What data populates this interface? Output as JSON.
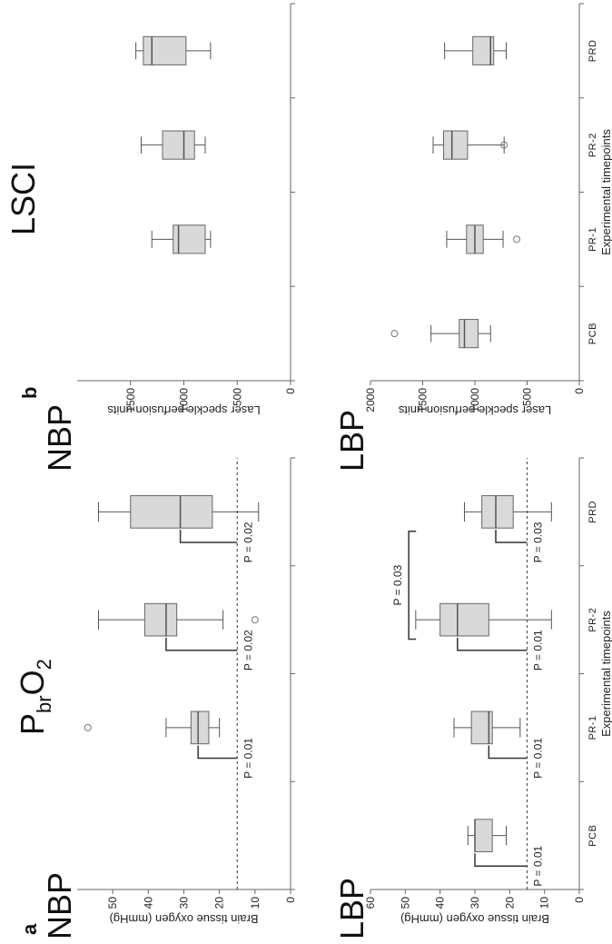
{
  "figure": {
    "panel_a_letter": "a",
    "panel_b_letter": "b",
    "panel_a_title": "P",
    "panel_a_title_sub": "br",
    "panel_a_title_mid": "O",
    "panel_a_title_sub2": "2",
    "panel_b_title": "LSCI",
    "row_top_label": "NBP",
    "row_bottom_label": "LBP",
    "row_top_label_b": "NBP",
    "row_bottom_label_b": "LBP"
  },
  "chart_data": [
    {
      "id": "a_nbp",
      "type": "box",
      "panel": "a",
      "row": "NBP",
      "title": "NBP",
      "ylabel": "Brain tissue oxygen (mmHg)",
      "xlabel": "",
      "ylim": [
        0,
        60
      ],
      "yticks": [
        "0",
        "10",
        "20",
        "30",
        "40",
        "50"
      ],
      "categories": [
        "PCB",
        "PR-1",
        "PR-2",
        "PRD"
      ],
      "show_category_labels": false,
      "reference_line": 15,
      "boxes": [
        {
          "category": "PCB",
          "present": false
        },
        {
          "category": "PR-1",
          "present": true,
          "min": 20,
          "q1": 23,
          "median": 26,
          "q3": 28,
          "max": 35,
          "outliers": [
            57
          ]
        },
        {
          "category": "PR-2",
          "present": true,
          "min": 19,
          "q1": 32,
          "median": 35,
          "q3": 41,
          "max": 54,
          "outliers": [
            10
          ]
        },
        {
          "category": "PRD",
          "present": true,
          "min": 9,
          "q1": 22,
          "median": 31,
          "q3": 45,
          "max": 54,
          "outliers": []
        }
      ],
      "pvalues": [
        {
          "category": "PR-1",
          "label": "P = 0.01",
          "bracket_top": 26
        },
        {
          "category": "PR-2",
          "label": "P = 0.02",
          "bracket_top": 35
        },
        {
          "category": "PRD",
          "label": "P = 0.02",
          "bracket_top": 31
        }
      ],
      "between_pvalues": []
    },
    {
      "id": "a_lbp",
      "type": "box",
      "panel": "a",
      "row": "LBP",
      "title": "LBP",
      "ylabel": "Brain tissue oxygen (mmHg)",
      "xlabel": "Experimental timepoints",
      "ylim": [
        0,
        60
      ],
      "yticks": [
        "0",
        "10",
        "20",
        "30",
        "40",
        "50",
        "60"
      ],
      "categories": [
        "PCB",
        "PR-1",
        "PR-2",
        "PRD"
      ],
      "show_category_labels": true,
      "reference_line": 15,
      "boxes": [
        {
          "category": "PCB",
          "present": true,
          "min": 21,
          "q1": 25,
          "median": 30,
          "q3": 30,
          "max": 32,
          "outliers": []
        },
        {
          "category": "PR-1",
          "present": true,
          "min": 17,
          "q1": 25,
          "median": 26,
          "q3": 31,
          "max": 36,
          "outliers": []
        },
        {
          "category": "PR-2",
          "present": true,
          "min": 8,
          "q1": 26,
          "median": 35,
          "q3": 40,
          "max": 47,
          "outliers": []
        },
        {
          "category": "PRD",
          "present": true,
          "min": 8,
          "q1": 19,
          "median": 24,
          "q3": 28,
          "max": 33,
          "outliers": []
        }
      ],
      "pvalues": [
        {
          "category": "PCB",
          "label": "P = 0.01",
          "bracket_top": 30
        },
        {
          "category": "PR-1",
          "label": "P = 0.01",
          "bracket_top": 26
        },
        {
          "category": "PR-2",
          "label": "P = 0.01",
          "bracket_top": 35
        },
        {
          "category": "PRD",
          "label": "P = 0.03",
          "bracket_top": 24
        }
      ],
      "between_pvalues": [
        {
          "from": "PR-2",
          "to": "PRD",
          "label": "P = 0.03",
          "level": 49
        }
      ]
    },
    {
      "id": "b_nbp",
      "type": "box",
      "panel": "b",
      "row": "NBP",
      "title": "NBP",
      "ylabel": "Laser speckle perfusion units",
      "xlabel": "",
      "ylim": [
        0,
        2000
      ],
      "yticks": [
        "0",
        "500",
        "1000",
        "1500"
      ],
      "categories": [
        "PCB",
        "PR-1",
        "PR-2",
        "PRD"
      ],
      "show_category_labels": false,
      "reference_line": null,
      "boxes": [
        {
          "category": "PCB",
          "present": false
        },
        {
          "category": "PR-1",
          "present": true,
          "min": 750,
          "q1": 800,
          "median": 1050,
          "q3": 1100,
          "max": 1300,
          "outliers": []
        },
        {
          "category": "PR-2",
          "present": true,
          "min": 800,
          "q1": 900,
          "median": 1000,
          "q3": 1200,
          "max": 1400,
          "outliers": []
        },
        {
          "category": "PRD",
          "present": true,
          "min": 750,
          "q1": 980,
          "median": 1300,
          "q3": 1380,
          "max": 1450,
          "outliers": []
        }
      ],
      "pvalues": [],
      "between_pvalues": []
    },
    {
      "id": "b_lbp",
      "type": "box",
      "panel": "b",
      "row": "LBP",
      "title": "LBP",
      "ylabel": "Laser speckle perfusion units",
      "xlabel": "Experimental timepoints",
      "ylim": [
        0,
        2000
      ],
      "yticks": [
        "0",
        "500",
        "1000",
        "1500",
        "2000"
      ],
      "categories": [
        "PCB",
        "PR-1",
        "PR-2",
        "PRD"
      ],
      "show_category_labels": true,
      "reference_line": null,
      "boxes": [
        {
          "category": "PCB",
          "present": true,
          "min": 850,
          "q1": 970,
          "median": 1100,
          "q3": 1150,
          "max": 1420,
          "outliers": [
            1770
          ]
        },
        {
          "category": "PR-1",
          "present": true,
          "min": 730,
          "q1": 920,
          "median": 1000,
          "q3": 1080,
          "max": 1270,
          "outliers": [
            600
          ]
        },
        {
          "category": "PR-2",
          "present": true,
          "min": 720,
          "q1": 1070,
          "median": 1220,
          "q3": 1300,
          "max": 1400,
          "outliers": [
            720
          ]
        },
        {
          "category": "PRD",
          "present": true,
          "min": 700,
          "q1": 820,
          "median": 850,
          "q3": 1020,
          "max": 1290,
          "outliers": []
        }
      ],
      "pvalues": [],
      "between_pvalues": []
    }
  ]
}
